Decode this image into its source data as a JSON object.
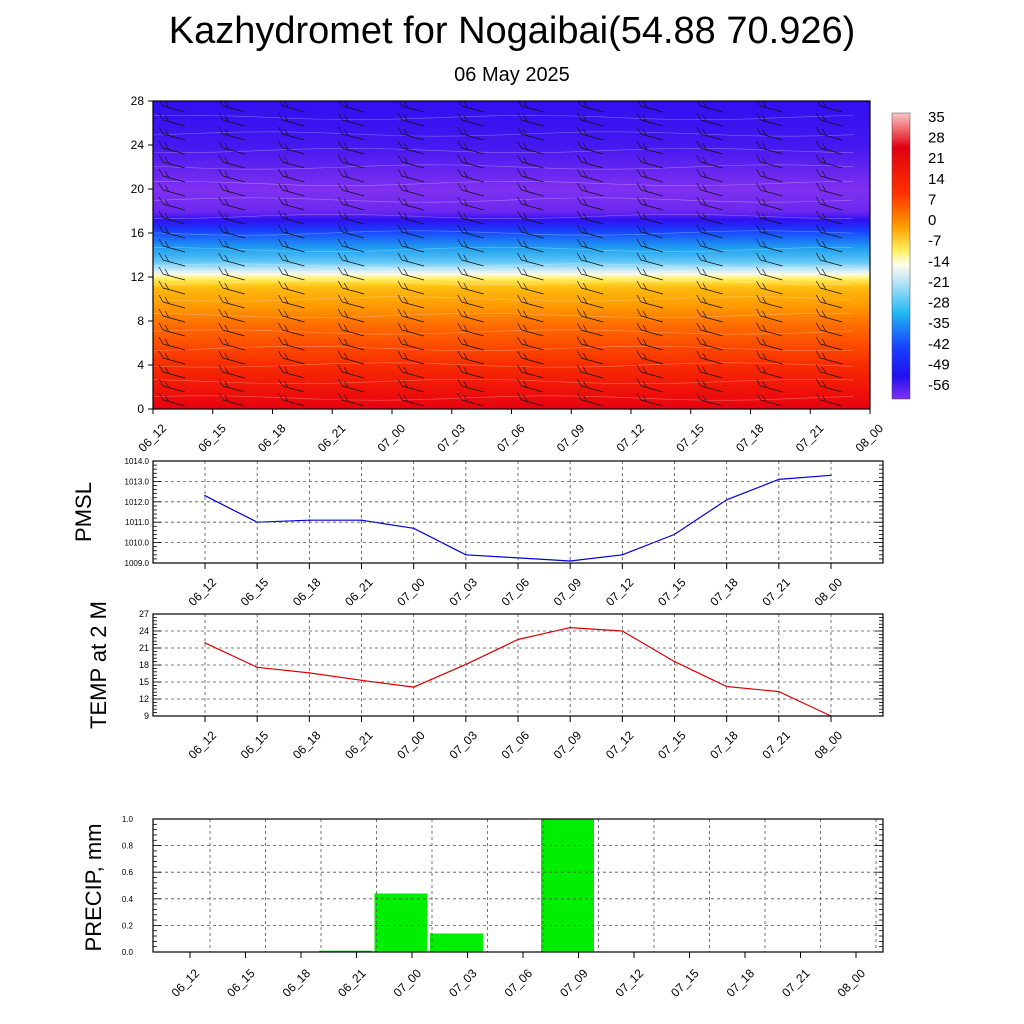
{
  "header": {
    "title": "Kazhydromet for Nogaibai(54.88 70.926)",
    "subtitle": "06 May 2025"
  },
  "chart_data": [
    {
      "type": "heatmap",
      "name": "temperature-cross-section",
      "title": "",
      "x_ticks": [
        "06_12",
        "06_15",
        "06_18",
        "06_21",
        "07_00",
        "07_03",
        "07_06",
        "07_09",
        "07_12",
        "07_15",
        "07_18",
        "07_21",
        "08_00"
      ],
      "y_ticks": [
        0,
        4,
        8,
        12,
        16,
        20,
        24,
        28
      ],
      "ylim": [
        0,
        28
      ],
      "colorbar_labels": [
        35,
        28,
        21,
        14,
        7,
        0,
        -7,
        -14,
        -21,
        -28,
        -35,
        -42,
        -49,
        -56
      ],
      "vertical_profile": [
        {
          "level": 0,
          "value": 28
        },
        {
          "level": 4,
          "value": 22
        },
        {
          "level": 8,
          "value": 12
        },
        {
          "level": 11,
          "value": 2
        },
        {
          "level": 12.5,
          "value": -12
        },
        {
          "level": 14,
          "value": -25
        },
        {
          "level": 16,
          "value": -40
        },
        {
          "level": 18,
          "value": -56
        },
        {
          "level": 20,
          "value": -58
        },
        {
          "level": 24,
          "value": -52
        },
        {
          "level": 28,
          "value": -50
        }
      ],
      "wind_barbs": true
    },
    {
      "type": "line",
      "name": "pmsl",
      "ylabel": "PMSL",
      "x": [
        "06_12",
        "06_15",
        "06_18",
        "06_21",
        "07_00",
        "07_03",
        "07_06",
        "07_09",
        "07_12",
        "07_15",
        "07_18",
        "07_21",
        "08_00"
      ],
      "y_ticks": [
        "1009.0",
        "1010.0",
        "1011.0",
        "1012.0",
        "1013.0",
        "1014.0"
      ],
      "ylim": [
        1009,
        1014
      ],
      "series": [
        {
          "color": "#0000dd",
          "values": [
            1012.3,
            1011.0,
            1011.1,
            1011.1,
            1010.7,
            1009.4,
            1009.25,
            1009.1,
            1009.4,
            1010.4,
            1012.1,
            1013.1,
            1013.3
          ]
        }
      ],
      "grid": true
    },
    {
      "type": "line",
      "name": "temp-2m",
      "ylabel": "TEMP at 2 M",
      "x": [
        "06_12",
        "06_15",
        "06_18",
        "06_21",
        "07_00",
        "07_03",
        "07_06",
        "07_09",
        "07_12",
        "07_15",
        "07_18",
        "07_21",
        "08_00"
      ],
      "y_ticks": [
        "9",
        "12",
        "15",
        "18",
        "21",
        "24",
        "27"
      ],
      "ylim": [
        9,
        27
      ],
      "series": [
        {
          "color": "#dd0000",
          "values": [
            21.9,
            17.6,
            16.6,
            15.3,
            14.1,
            18.1,
            22.5,
            24.6,
            24.0,
            18.6,
            14.2,
            13.3,
            9.0
          ]
        }
      ],
      "grid": true
    },
    {
      "type": "bar",
      "name": "precip",
      "ylabel": "PRECIP, mm",
      "categories": [
        "06_12",
        "06_15",
        "06_18",
        "06_21",
        "07_00",
        "07_03",
        "07_06",
        "07_09",
        "07_12",
        "07_15",
        "07_18",
        "07_21",
        "08_00"
      ],
      "y_ticks": [
        "0.0",
        "0.2",
        "0.4",
        "0.6",
        "0.8",
        "1.0"
      ],
      "ylim": [
        0,
        1.0
      ],
      "values": [
        0,
        0,
        0,
        0.01,
        0.44,
        0.14,
        0,
        1.0,
        0,
        0,
        0,
        0,
        0
      ],
      "color": "#00ee00",
      "grid": true
    }
  ]
}
